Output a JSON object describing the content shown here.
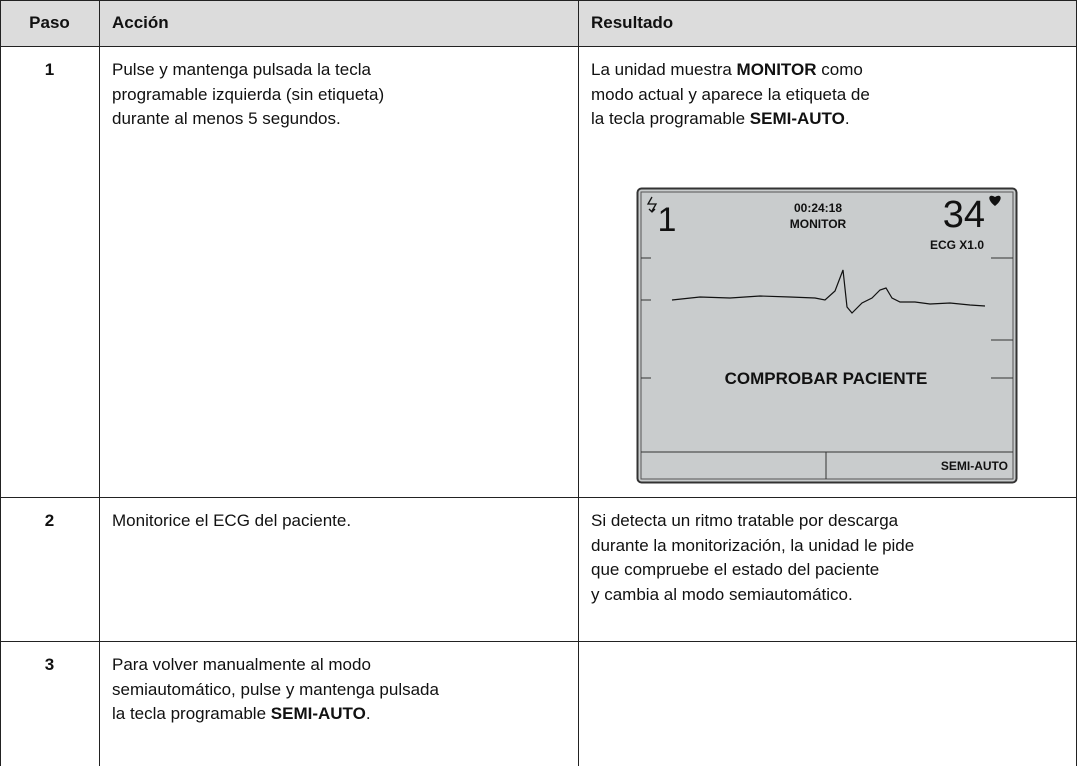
{
  "table": {
    "headers": [
      "Paso",
      "Acción",
      "Resultado"
    ],
    "rows": [
      {
        "step": "1",
        "action": [
          [
            {
              "text": "Pulse y mantenga pulsada la tecla"
            }
          ],
          [
            {
              "text": "programable izquierda (sin etiqueta)"
            }
          ],
          [
            {
              "text": "durante al menos 5 segundos."
            }
          ]
        ],
        "result": [
          [
            {
              "text": "La unidad muestra "
            },
            {
              "text": "MONITOR",
              "bold": true
            },
            {
              "text": " como"
            }
          ],
          [
            {
              "text": "modo actual y aparece la etiqueta de"
            }
          ],
          [
            {
              "text": "la tecla programable "
            },
            {
              "text": "SEMI-AUTO",
              "bold": true
            },
            {
              "text": "."
            }
          ]
        ],
        "screen": {
          "energy": "1",
          "time": "00:24:18",
          "mode": "MONITOR",
          "heart_rate": "34",
          "lead": "ECG X1.0",
          "message": "COMPROBAR PACIENTE",
          "softkey_right": "SEMI-AUTO"
        }
      },
      {
        "step": "2",
        "action": [
          [
            {
              "text": "Monitorice el ECG del paciente."
            }
          ]
        ],
        "result": [
          [
            {
              "text": "Si detecta un ritmo tratable por descarga"
            }
          ],
          [
            {
              "text": "durante la monitorización, la unidad le pide"
            }
          ],
          [
            {
              "text": "que compruebe el estado del paciente"
            }
          ],
          [
            {
              "text": "y cambia al modo semiautomático."
            }
          ]
        ]
      },
      {
        "step": "3",
        "action": [
          [
            {
              "text": "Para volver manualmente al modo"
            }
          ],
          [
            {
              "text": "semiautomático, pulse y mantenga pulsada"
            }
          ],
          [
            {
              "text": "la tecla programable "
            },
            {
              "text": "SEMI-AUTO",
              "bold": true
            },
            {
              "text": "."
            }
          ]
        ]
      }
    ]
  }
}
